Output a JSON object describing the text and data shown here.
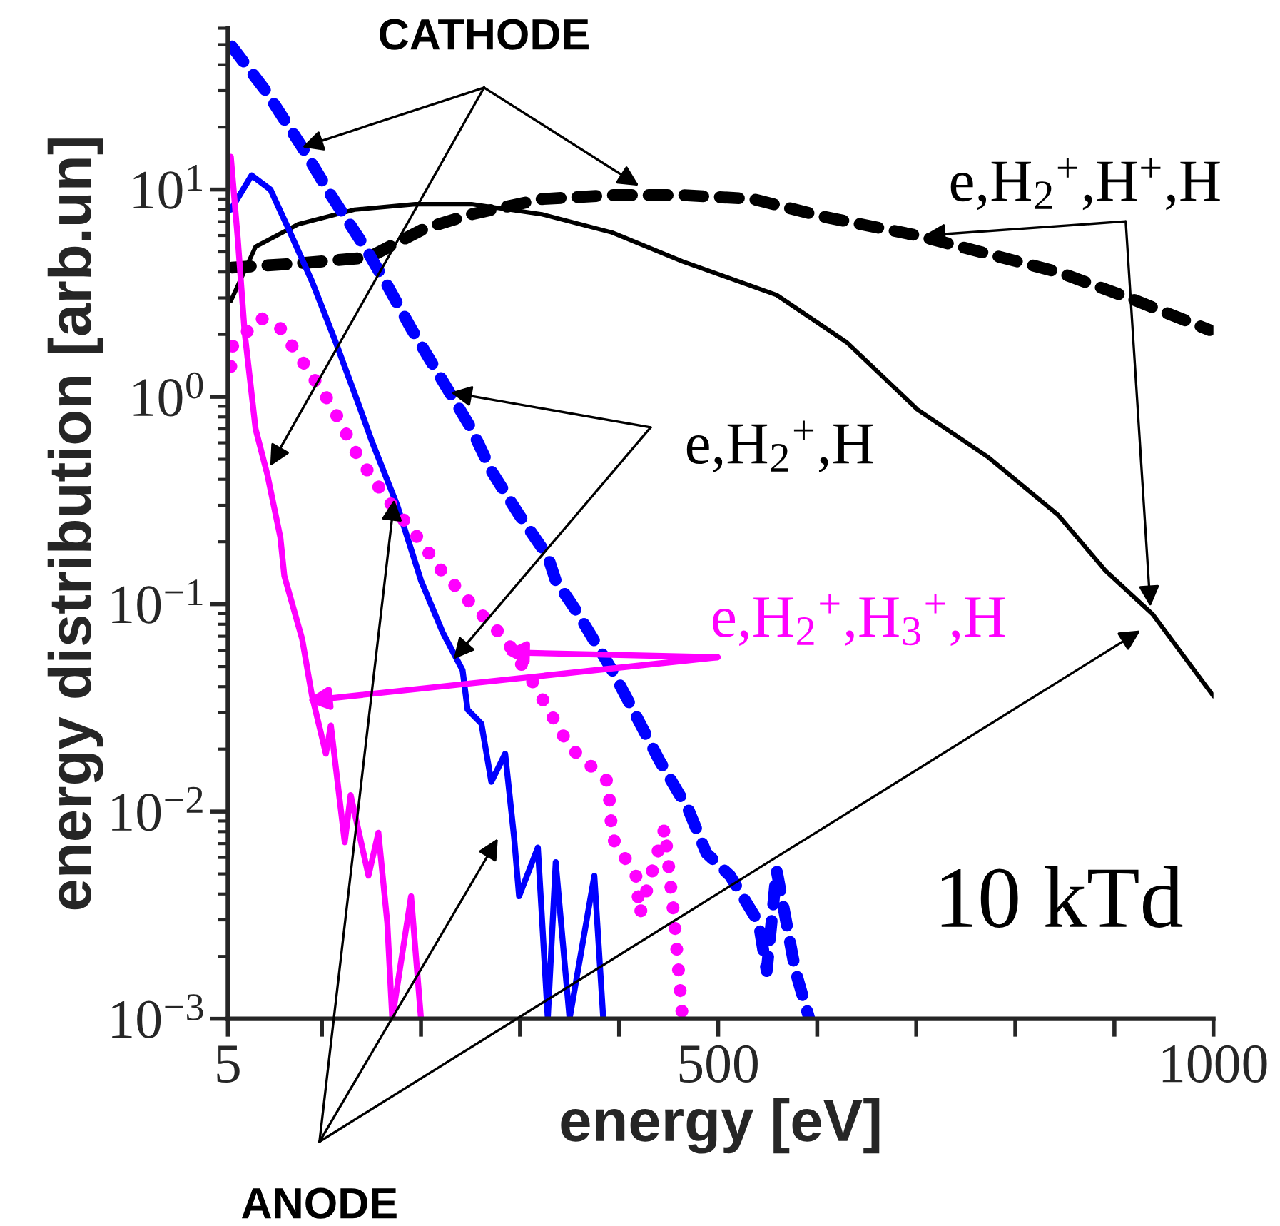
{
  "chart_data": {
    "type": "line",
    "xlabel": "energy [eV]",
    "ylabel": "energy distribution [arb.un]",
    "log": "y",
    "xlim": [
      5,
      1000
    ],
    "ylim": [
      0.001,
      60
    ],
    "xticks": [
      5,
      {
        "value": 100,
        "label": null
      },
      {
        "value": 200,
        "label": null
      },
      {
        "value": 300,
        "label": null
      },
      {
        "value": 400,
        "label": null
      },
      500,
      {
        "value": 600,
        "label": null
      },
      {
        "value": 700,
        "label": null
      },
      {
        "value": 800,
        "label": null
      },
      {
        "value": 900,
        "label": null
      },
      1000
    ],
    "yticks": [
      {
        "value": 0.001,
        "label": "10$^{−3}$"
      },
      {
        "value": 0.01,
        "label": "10$^{−2}$"
      },
      {
        "value": 0.1,
        "label": "10$^{−1}$"
      },
      {
        "value": 1,
        "label": "10$^{0}$"
      },
      {
        "value": 10,
        "label": "10$^{1}$"
      }
    ],
    "series": [
      {
        "color": "#000000",
        "line_style": "dashed",
        "x": [
          9,
          76,
          147,
          204,
          251,
          322,
          393,
          464,
          535,
          606,
          701,
          843,
          915,
          996
        ],
        "values": [
          4.2,
          4.4,
          4.7,
          6.5,
          7.6,
          9.0,
          9.4,
          9.4,
          9.0,
          7.4,
          6.0,
          4.0,
          3.0,
          2.1
        ]
      },
      {
        "color": "#000000",
        "line_style": "solid",
        "x": [
          8,
          33,
          76,
          133,
          194,
          251,
          322,
          393,
          464,
          559,
          630,
          701,
          773,
          843,
          891,
          939,
          1000
        ],
        "values": [
          2.9,
          5.3,
          6.8,
          8.0,
          8.5,
          8.5,
          7.6,
          6.2,
          4.5,
          3.1,
          1.83,
          0.87,
          0.51,
          0.27,
          0.145,
          0.089,
          0.036
        ]
      },
      {
        "color": "#0000ff",
        "line_style": "dashed",
        "x": [
          9,
          43,
          80,
          109,
          143,
          166,
          190,
          222,
          251,
          271,
          299,
          328,
          336,
          356,
          393,
          417,
          441,
          470,
          488,
          512,
          541,
          549,
          559,
          578,
          592
        ],
        "values": [
          49,
          30,
          16,
          9.4,
          5.3,
          3.45,
          2.14,
          1.19,
          0.7,
          0.44,
          0.27,
          0.17,
          0.13,
          0.094,
          0.048,
          0.029,
          0.0175,
          0.0102,
          0.0063,
          0.0049,
          0.0029,
          0.0017,
          0.0052,
          0.0017,
          0.001
        ]
      },
      {
        "color": "#0000ff",
        "line_style": "solid",
        "x": [
          8,
          29,
          48,
          66,
          90,
          114,
          137,
          151,
          176,
          194,
          200,
          222,
          242,
          247,
          261,
          271,
          285,
          294,
          299,
          318,
          328,
          336,
          350,
          375,
          384
        ],
        "values": [
          8.0,
          11.7,
          10,
          6.5,
          3.6,
          1.83,
          0.92,
          0.6,
          0.3,
          0.16,
          0.13,
          0.073,
          0.048,
          0.031,
          0.0265,
          0.0139,
          0.019,
          0.0075,
          0.0039,
          0.0067,
          0.001,
          0.0057,
          0.001,
          0.0049,
          0.001
        ]
      },
      {
        "color": "#ff00ff",
        "line_style": "solid",
        "x": [
          8,
          15,
          22,
          33,
          45,
          58,
          62,
          80,
          90,
          104,
          109,
          123,
          129,
          147,
          157,
          166,
          171,
          190,
          200
        ],
        "values": [
          14.4,
          5.8,
          2.04,
          0.7,
          0.42,
          0.21,
          0.137,
          0.068,
          0.036,
          0.019,
          0.026,
          0.0071,
          0.012,
          0.0049,
          0.0079,
          0.0029,
          0.001,
          0.0039,
          0.001
        ]
      },
      {
        "color": "#ff00ff",
        "line_style": "dotted",
        "x": [
          8,
          9,
          38,
          58,
          80,
          109,
          137,
          166,
          200,
          218,
          251,
          285,
          313,
          332,
          350,
          389,
          393,
          417,
          421,
          446,
          456,
          464
        ],
        "values": [
          1.4,
          1.74,
          2.4,
          2.14,
          1.49,
          0.92,
          0.51,
          0.32,
          0.2,
          0.15,
          0.1,
          0.068,
          0.042,
          0.029,
          0.0205,
          0.0139,
          0.0075,
          0.0049,
          0.0032,
          0.0083,
          0.0029,
          0.001
        ]
      }
    ],
    "annotations": [
      {
        "text": "CATHODE",
        "x": 80,
        "y": 16
      },
      {
        "text": "e,H$_{2}$$^{+}$,H$^{+}$,H",
        "x": 708,
        "y": 6.0
      },
      {
        "text": "e,H$_{2}$$^{+}$,H",
        "x": 230,
        "y": 1.05
      },
      "e,H$_{2}$$^{+}$,H$_{3}$$^{+}$,H",
      {
        "text": "ANODE",
        "x": 173,
        "y": 0.32
      },
      "10 kTd"
    ]
  }
}
